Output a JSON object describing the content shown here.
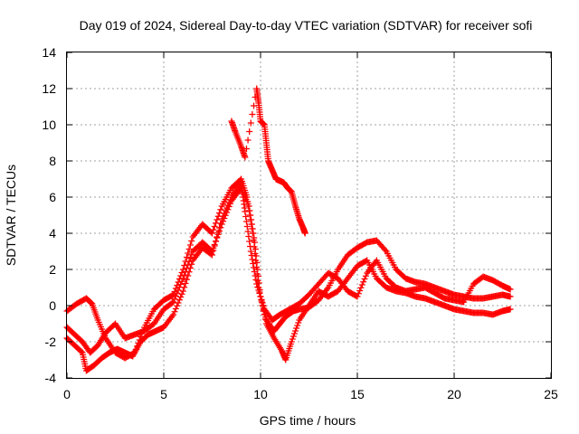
{
  "chart_data": {
    "type": "scatter",
    "title": "Day 019 of 2024, Sidereal Day-to-day VTEC variation (SDTVAR) for receiver sofi",
    "xlabel": "GPS time / hours",
    "ylabel": "SDTVAR / TECUs",
    "xlim": [
      0,
      25
    ],
    "ylim": [
      -4,
      14
    ],
    "xticks": [
      0,
      5,
      10,
      15,
      20,
      25
    ],
    "yticks": [
      -4,
      -2,
      0,
      2,
      4,
      6,
      8,
      10,
      12,
      14
    ],
    "grid": true,
    "marker": "+",
    "series": [
      {
        "name": "track-1",
        "color": "#ff0000",
        "points": [
          [
            0,
            -0.3
          ],
          [
            0.5,
            0.1
          ],
          [
            1.0,
            0.4
          ],
          [
            1.3,
            0.1
          ],
          [
            1.6,
            -0.8
          ],
          [
            2.0,
            -1.8
          ],
          [
            2.5,
            -2.6
          ],
          [
            3.0,
            -2.9
          ],
          [
            3.5,
            -2.6
          ],
          [
            4.0,
            -1.2
          ],
          [
            4.5,
            -0.2
          ],
          [
            5.0,
            0.3
          ],
          [
            5.5,
            0.6
          ],
          [
            6.0,
            2.0
          ],
          [
            6.5,
            3.8
          ],
          [
            7.0,
            4.5
          ],
          [
            7.5,
            4.0
          ],
          [
            8.0,
            5.5
          ],
          [
            8.5,
            6.5
          ],
          [
            9.0,
            7.0
          ],
          [
            9.3,
            6.0
          ],
          [
            9.6,
            4.0
          ],
          [
            9.9,
            1.0
          ],
          [
            10.3,
            -1.0
          ],
          [
            10.7,
            -1.8
          ],
          [
            11.1,
            -2.5
          ],
          [
            11.3,
            -3.0
          ],
          [
            11.6,
            -2.0
          ],
          [
            12.0,
            -0.8
          ],
          [
            12.5,
            0.0
          ],
          [
            13.0,
            0.8
          ],
          [
            13.5,
            0.5
          ],
          [
            14.0,
            0.8
          ],
          [
            14.5,
            1.5
          ],
          [
            15.0,
            2.2
          ],
          [
            15.5,
            2.5
          ],
          [
            16.0,
            1.5
          ],
          [
            16.5,
            1.0
          ],
          [
            17.0,
            0.8
          ],
          [
            17.5,
            0.7
          ],
          [
            18.0,
            0.5
          ],
          [
            18.5,
            0.4
          ],
          [
            19.0,
            0.2
          ],
          [
            19.5,
            0.0
          ],
          [
            20.0,
            -0.2
          ],
          [
            20.5,
            -0.3
          ],
          [
            21.0,
            -0.4
          ],
          [
            21.5,
            -0.4
          ],
          [
            22.0,
            -0.5
          ],
          [
            22.5,
            -0.3
          ],
          [
            22.9,
            -0.2
          ]
        ]
      },
      {
        "name": "track-2",
        "color": "#ff0000",
        "points": [
          [
            0,
            -1.2
          ],
          [
            0.4,
            -1.6
          ],
          [
            0.8,
            -2.0
          ],
          [
            1.2,
            -2.6
          ],
          [
            1.6,
            -2.2
          ],
          [
            2.0,
            -1.5
          ],
          [
            2.5,
            -1.0
          ],
          [
            3.0,
            -1.8
          ],
          [
            3.5,
            -1.6
          ],
          [
            4.0,
            -1.4
          ],
          [
            4.5,
            -1.0
          ],
          [
            5.0,
            -0.2
          ],
          [
            5.5,
            0.2
          ],
          [
            6.0,
            1.5
          ],
          [
            6.5,
            3.0
          ],
          [
            7.0,
            3.5
          ],
          [
            7.5,
            3.0
          ],
          [
            8.0,
            4.5
          ],
          [
            8.5,
            5.8
          ],
          [
            9.0,
            6.5
          ],
          [
            9.4,
            5.5
          ],
          [
            9.7,
            3.5
          ],
          [
            10.0,
            0.5
          ],
          [
            10.3,
            -0.8
          ],
          [
            10.7,
            -1.4
          ],
          [
            11.0,
            -1.0
          ],
          [
            11.3,
            -0.6
          ],
          [
            11.7,
            -0.3
          ],
          [
            12.0,
            -0.2
          ],
          [
            12.5,
            -0.1
          ],
          [
            13.0,
            0.3
          ],
          [
            13.5,
            1.0
          ],
          [
            14.0,
            2.0
          ],
          [
            14.5,
            2.8
          ],
          [
            15.0,
            3.2
          ],
          [
            15.5,
            3.5
          ],
          [
            16.0,
            3.6
          ],
          [
            16.5,
            3.0
          ],
          [
            17.0,
            2.0
          ],
          [
            17.5,
            1.5
          ],
          [
            18.0,
            1.3
          ],
          [
            18.5,
            1.2
          ],
          [
            19.0,
            1.0
          ],
          [
            19.5,
            0.8
          ],
          [
            20.0,
            0.6
          ],
          [
            20.5,
            0.5
          ],
          [
            21.0,
            0.4
          ],
          [
            21.5,
            0.4
          ],
          [
            22.0,
            0.5
          ],
          [
            22.5,
            0.6
          ],
          [
            22.9,
            0.5
          ]
        ]
      },
      {
        "name": "track-3",
        "color": "#ff0000",
        "points": [
          [
            0,
            -1.8
          ],
          [
            0.4,
            -2.2
          ],
          [
            0.8,
            -2.6
          ],
          [
            1.0,
            -3.6
          ],
          [
            1.4,
            -3.3
          ],
          [
            1.8,
            -2.9
          ],
          [
            2.2,
            -2.6
          ],
          [
            2.6,
            -2.4
          ],
          [
            3.0,
            -2.6
          ],
          [
            3.4,
            -2.8
          ],
          [
            3.8,
            -2.0
          ],
          [
            4.2,
            -1.6
          ],
          [
            4.6,
            -1.4
          ],
          [
            5.0,
            -1.2
          ],
          [
            5.5,
            -0.5
          ],
          [
            6.0,
            0.8
          ],
          [
            6.5,
            2.5
          ],
          [
            7.0,
            3.2
          ],
          [
            7.5,
            2.8
          ],
          [
            8.0,
            4.8
          ],
          [
            8.5,
            6.0
          ],
          [
            9.0,
            6.8
          ],
          [
            9.2,
            5.2
          ],
          [
            9.5,
            3.0
          ],
          [
            9.8,
            1.2
          ],
          [
            10.2,
            -0.2
          ],
          [
            10.6,
            -0.8
          ],
          [
            11.0,
            -0.5
          ],
          [
            11.5,
            -0.2
          ],
          [
            12.0,
            0.1
          ],
          [
            12.5,
            0.6
          ],
          [
            13.0,
            1.2
          ],
          [
            13.5,
            1.8
          ],
          [
            14.0,
            1.5
          ],
          [
            14.5,
            0.8
          ],
          [
            15.0,
            0.5
          ],
          [
            15.5,
            1.8
          ],
          [
            16.0,
            2.5
          ],
          [
            16.5,
            1.5
          ],
          [
            17.0,
            1.0
          ],
          [
            17.5,
            0.8
          ],
          [
            18.0,
            0.9
          ],
          [
            18.5,
            1.0
          ],
          [
            19.0,
            0.7
          ],
          [
            19.5,
            0.4
          ],
          [
            20.0,
            0.3
          ],
          [
            20.5,
            0.2
          ],
          [
            21.0,
            1.2
          ],
          [
            21.5,
            1.6
          ],
          [
            22.0,
            1.4
          ],
          [
            22.5,
            1.1
          ],
          [
            22.9,
            0.9
          ]
        ]
      },
      {
        "name": "track-4",
        "color": "#ff0000",
        "points": [
          [
            8.5,
            10.2
          ],
          [
            8.7,
            9.6
          ],
          [
            9.0,
            8.8
          ],
          [
            9.2,
            8.2
          ],
          [
            9.8,
            12.0
          ],
          [
            9.9,
            11.2
          ],
          [
            10.0,
            10.2
          ],
          [
            10.2,
            10.0
          ],
          [
            10.3,
            9.0
          ],
          [
            10.4,
            8.0
          ],
          [
            10.6,
            7.5
          ],
          [
            10.8,
            7.0
          ],
          [
            11.0,
            6.9
          ],
          [
            11.2,
            6.8
          ],
          [
            11.4,
            6.5
          ],
          [
            11.6,
            6.3
          ],
          [
            11.8,
            5.5
          ],
          [
            12.0,
            4.8
          ],
          [
            12.2,
            4.3
          ],
          [
            12.3,
            4.0
          ]
        ]
      }
    ]
  }
}
